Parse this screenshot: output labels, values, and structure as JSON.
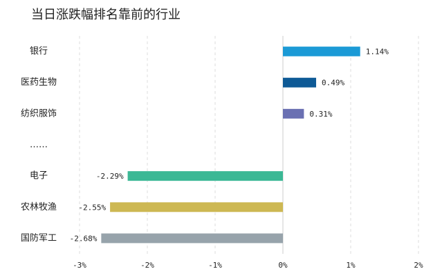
{
  "chart_data": {
    "type": "bar",
    "orientation": "horizontal",
    "title": "当日涨跌幅排名靠前的行业",
    "categories": [
      "银行",
      "医药生物",
      "纺织服饰",
      "……",
      "电子",
      "农林牧渔",
      "国防军工"
    ],
    "values": [
      1.14,
      0.49,
      0.31,
      null,
      -2.29,
      -2.55,
      -2.68
    ],
    "value_labels": [
      "1.14%",
      "0.49%",
      "0.31%",
      null,
      "-2.29%",
      "-2.55%",
      "-2.68%"
    ],
    "colors": [
      "#1b9ad6",
      "#0e5a96",
      "#6a70b2",
      null,
      "#3bb895",
      "#cdb853",
      "#97a3ab"
    ],
    "xlim": [
      -3,
      2
    ],
    "xticks": [
      {
        "value": -3,
        "label": "-3%"
      },
      {
        "value": -2,
        "label": "-2%"
      },
      {
        "value": -1,
        "label": "-1%"
      },
      {
        "value": 0,
        "label": "0%"
      },
      {
        "value": 1,
        "label": "1%"
      },
      {
        "value": 2,
        "label": "2%"
      }
    ],
    "grid": true
  }
}
